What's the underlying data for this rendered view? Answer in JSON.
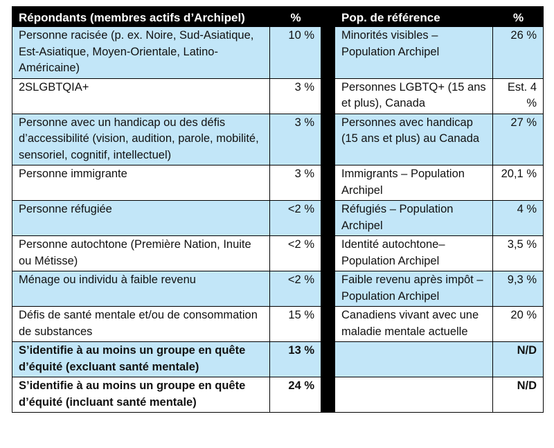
{
  "header": {
    "col1": "Répondants (membres actifs d’Archipel)",
    "col2": "%",
    "col4": "Pop. de référence",
    "col5": "%"
  },
  "rows": [
    {
      "group": "Personne racisée (p. ex. Noire, Sud-Asiatique, Est-Asiatique, Moyen-Orientale, Latino-Américaine)",
      "pct": "10 %",
      "ref": "Minorités visibles – Population Archipel",
      "ref_pct": "26 %"
    },
    {
      "group": "2SLGBTQIA+",
      "pct": "3 %",
      "ref": "Personnes LGBTQ+ (15 ans et plus), Canada",
      "ref_pct": "Est. 4 %"
    },
    {
      "group": "Personne avec un handicap ou des défis d’accessibilité (vision, audition, parole, mobilité, sensoriel, cognitif, intellectuel)",
      "pct": "3 %",
      "ref": "Personnes avec handicap (15 ans et plus) au Canada",
      "ref_pct": "27 %"
    },
    {
      "group": "Personne immigrante",
      "pct": "3 %",
      "ref": "Immigrants – Population Archipel",
      "ref_pct": "20,1 %"
    },
    {
      "group": "Personne réfugiée",
      "pct": "<2 %",
      "ref": "Réfugiés – Population Archipel",
      "ref_pct": "4 %"
    },
    {
      "group": "Personne autochtone (Première Nation, Inuite ou Métisse)",
      "pct": "<2 %",
      "ref": "Identité autochtone–Population Archipel",
      "ref_pct": "3,5 %"
    },
    {
      "group": "Ménage ou individu à faible revenu",
      "pct": "<2 %",
      "ref": "Faible revenu après impôt – Population Archipel",
      "ref_pct": "9,3 %"
    },
    {
      "group": "Défis de santé mentale et/ou de consommation de substances",
      "pct": "15 %",
      "ref": "Canadiens vivant avec une maladie mentale actuelle",
      "ref_pct": "20 %"
    },
    {
      "group": "S’identifie à au moins un groupe en quête d’équité (excluant santé mentale)",
      "pct": "13 %",
      "ref": "",
      "ref_pct": "N/D"
    },
    {
      "group": "S’identifie à au moins un groupe en quête d’équité (incluant santé mentale)",
      "pct": "24 %",
      "ref": "",
      "ref_pct": "N/D"
    }
  ],
  "colors": {
    "header_bg": "#000000",
    "shaded_row": "#c2e6f8",
    "plain_row": "#ffffff"
  }
}
